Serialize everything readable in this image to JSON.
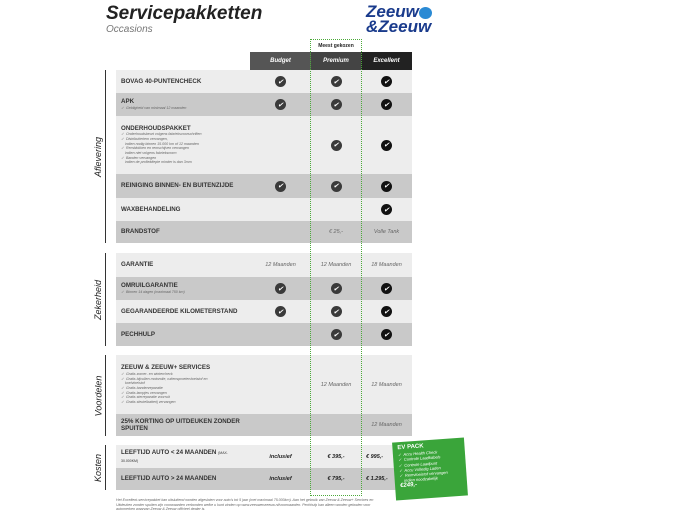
{
  "title": "Servicepakketten",
  "subtitle": "Occasions",
  "logo": {
    "line1": "Zeeuw",
    "line2": "&Zeeuw"
  },
  "header": {
    "tag": "Meest gekozen",
    "columns": [
      "Budget",
      "Premium",
      "Excellent"
    ],
    "colors": [
      "#555555",
      "#444444",
      "#222222"
    ]
  },
  "sections": [
    {
      "label": "Aflevering",
      "rows": [
        {
          "label": "BOVAG 40-PUNTENCHECK",
          "sub": [],
          "cells": [
            "check",
            "check",
            "check"
          ]
        },
        {
          "label": "APK",
          "sub": [
            "✓  Geldigheid van minimaal 12 maanden"
          ],
          "cells": [
            "check",
            "check",
            "check"
          ]
        },
        {
          "label": "ONDERHOUDSPAKKET",
          "sub": [
            "✓  Onderhoudsbeurt volgens fabrieksvoorschriften",
            "✓  Distributieriem vervangen,",
            "    indien nodig binnen 15.000 km of 12 maanden",
            "✓  Remblokken en remschijven vervangen",
            "    indien niet volgens fabrieksnorm",
            "✓  Banden vervangen",
            "    indien de profieldiepte minder is dan 3mm"
          ],
          "cells": [
            "",
            "check",
            "check"
          ]
        },
        {
          "label": "REINIGING BINNEN- EN BUITENZIJDE",
          "sub": [],
          "cells": [
            "check",
            "check",
            "check"
          ]
        },
        {
          "label": "WAXBEHANDELING",
          "sub": [],
          "cells": [
            "",
            "",
            "check"
          ]
        },
        {
          "label": "BRANDSTOF",
          "sub": [],
          "cells": [
            "",
            "€ 25,-",
            "Volle Tank"
          ]
        }
      ]
    },
    {
      "label": "Zekerheid",
      "rows": [
        {
          "label": "GARANTIE",
          "sub": [],
          "cells": [
            "12 Maanden",
            "12 Maanden",
            "18 Maanden"
          ]
        },
        {
          "label": "OMRUILGARANTIE",
          "sub": [
            "✓  Binnen 14 dagen (maximaal 750 km)"
          ],
          "cells": [
            "check",
            "check",
            "check"
          ]
        },
        {
          "label": "GEGARANDEERDE KILOMETERSTAND",
          "sub": [],
          "cells": [
            "check",
            "check",
            "check"
          ]
        },
        {
          "label": "PECHHULP",
          "sub": [],
          "cells": [
            "",
            "check",
            "check"
          ]
        }
      ]
    },
    {
      "label": "Voordelen",
      "rows": [
        {
          "label": "ZEEUW & ZEEUW+ SERVICES",
          "sub": [
            "✓  Gratis zomer- en wintercheck",
            "✓  Gratis bijvullen motorolie, ruitensproeiervloeistof en",
            "    koelvloeistof",
            "✓  Gratis bandenreparatie",
            "✓  Gratis lampjes vervangen",
            "✓  Gratis sterreparatie voorruit",
            "✓  Gratis sleutelbatterij vervangen"
          ],
          "cells": [
            "",
            "12 Maanden",
            "12 Maanden"
          ]
        },
        {
          "label": "25% KORTING OP UITDEUKEN ZONDER SPUITEN",
          "sub": [],
          "cells": [
            "",
            "",
            "12 Maanden"
          ]
        }
      ]
    },
    {
      "label": "Kosten",
      "rows": [
        {
          "label": "LEEFTIJD AUTO < 24 MAANDEN",
          "small": "(MAX. 30.000KM)",
          "sub": [],
          "cells": [
            "inclusief",
            "€ 395,-",
            "€ 995,-"
          ],
          "cost": true
        },
        {
          "label": "LEEFTIJD AUTO > 24 MAANDEN",
          "sub": [],
          "cells": [
            "inclusief",
            "€ 795,-",
            "€ 1.295,-"
          ],
          "cost": true
        }
      ]
    }
  ],
  "ev_pack": {
    "title": "EV PACK",
    "items": [
      "✓  Accu Health Check",
      "✓  Controle Laadkabels",
      "✓  Controle Laadpunt",
      "✓  Accu Volledig Laden",
      "✓  Remvloeistof vervangen",
      "    indien noodzakelijk"
    ],
    "price": "€249,-",
    "color": "#3aa53a"
  },
  "footnote": "Het Excellent-servicepakket kan uitsluitend worden afgesloten voor auto's tot 5 jaar (met maximaal 75.000km). Aan het gebruik van Zeeuw & Zeeuw+ Services en Uitdeuken zonder spuiten zijn voorwaarden verbonden welke u kunt vinden op www.zeeuwenzeeuw.nl/voorwaarden. Pechhulp kan alleen worden geboden voor automerken waarvan Zeeuw & Zeeuw officieel dealer is."
}
